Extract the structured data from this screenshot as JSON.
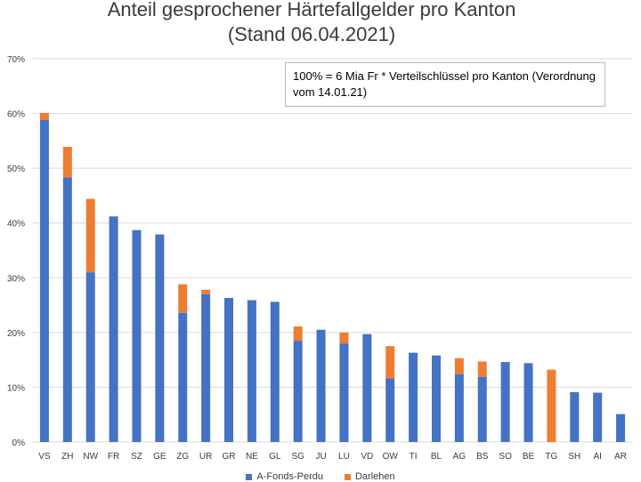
{
  "title_line1": "Anteil gesprochener Härtefallgelder pro Kanton",
  "title_line2": "(Stand 06.04.2021)",
  "note": "100% = 6 Mia Fr * Verteilschlüssel pro Kanton (Verordnung vom 14.01.21)",
  "colors": {
    "a_fonds_perdu": "#4472C4",
    "darlehen": "#ED7D31",
    "gridline": "#d9d9d9",
    "axis_text": "#3b3b3b"
  },
  "chart_data": {
    "type": "bar",
    "stacked": true,
    "categories": [
      "VS",
      "ZH",
      "NW",
      "FR",
      "SZ",
      "GE",
      "ZG",
      "UR",
      "GR",
      "NE",
      "GL",
      "SG",
      "JU",
      "LU",
      "VD",
      "OW",
      "TI",
      "BL",
      "AG",
      "BS",
      "SO",
      "BE",
      "TG",
      "SH",
      "AI",
      "AR"
    ],
    "series": [
      {
        "name": "A-Fonds-Perdu",
        "values": [
          58.8,
          48.3,
          31.0,
          41.2,
          38.7,
          37.9,
          23.6,
          27.0,
          26.3,
          25.9,
          25.6,
          18.5,
          20.5,
          18.0,
          19.7,
          11.6,
          16.3,
          15.8,
          12.4,
          11.9,
          14.6,
          14.4,
          0,
          9.1,
          9.0,
          5.1
        ]
      },
      {
        "name": "Darlehen",
        "values": [
          1.3,
          5.6,
          13.4,
          0,
          0,
          0,
          5.2,
          0.8,
          0,
          0,
          0,
          2.6,
          0,
          2.0,
          0,
          5.9,
          0,
          0,
          2.9,
          2.8,
          0,
          0,
          13.2,
          0,
          0,
          0
        ]
      }
    ],
    "ylim": [
      0,
      70
    ],
    "yticks": [
      "0%",
      "10%",
      "20%",
      "30%",
      "40%",
      "50%",
      "60%",
      "70%"
    ],
    "grid": true,
    "legend_position": "bottom"
  }
}
